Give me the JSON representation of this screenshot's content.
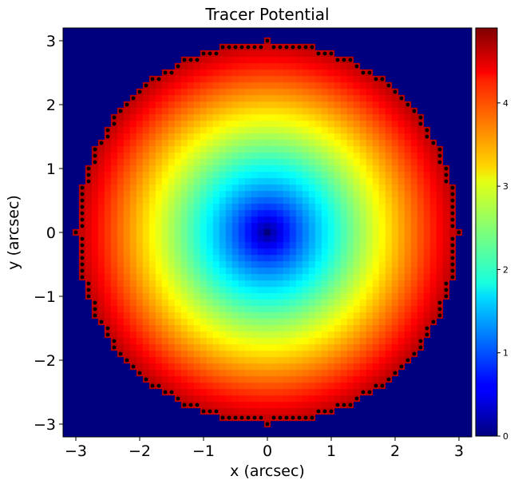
{
  "chart_data": {
    "type": "heatmap",
    "title": "Tracer Potential",
    "xlabel": "x (arcsec)",
    "ylabel": "y (arcsec)",
    "xlim": [
      -3.2,
      3.2
    ],
    "ylim": [
      -3.2,
      3.2
    ],
    "xticks": [
      -3,
      -2,
      -1,
      0,
      1,
      2,
      3
    ],
    "yticks": [
      -3,
      -2,
      -1,
      0,
      1,
      2,
      3
    ],
    "xtick_labels": [
      "−3",
      "−2",
      "−1",
      "0",
      "1",
      "2",
      "3"
    ],
    "ytick_labels": [
      "−3",
      "−2",
      "−1",
      "0",
      "1",
      "2",
      "3"
    ],
    "colormap": "jet",
    "grid": false,
    "pixel_scale": 0.1,
    "mask_radius": 3.0,
    "potential": {
      "form": "power_law",
      "coefficient": 1.9,
      "exponent": 0.82
    },
    "colorbar": {
      "range": [
        0,
        4.9
      ],
      "ticks": [
        0,
        1,
        2,
        3,
        4
      ],
      "tick_labels": [
        "0",
        "1",
        "2",
        "3",
        "4"
      ]
    },
    "background_color": "#00007f",
    "border_marker_color": "#000000"
  }
}
